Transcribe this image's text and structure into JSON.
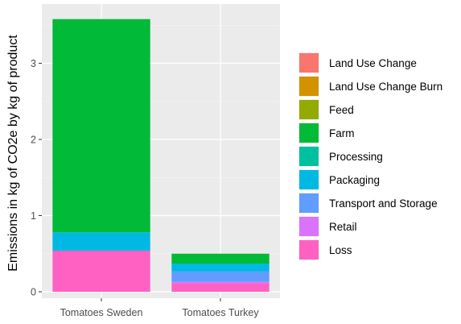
{
  "chart_data": {
    "type": "bar",
    "stacked": true,
    "categories": [
      "Tomatoes Sweden",
      "Tomatoes Turkey"
    ],
    "ylabel": "Emissions in kg of CO2e by kg of product",
    "xlabel": "",
    "ylim": [
      0,
      3.6
    ],
    "yticks": [
      0,
      1,
      2,
      3
    ],
    "grid": true,
    "legend_position": "right",
    "series": [
      {
        "name": "Land Use Change",
        "color": "#F8766D",
        "values": [
          0,
          0
        ]
      },
      {
        "name": "Land Use Change Burn",
        "color": "#D39200",
        "values": [
          0,
          0
        ]
      },
      {
        "name": "Feed",
        "color": "#93AA00",
        "values": [
          0,
          0
        ]
      },
      {
        "name": "Farm",
        "color": "#00BA38",
        "values": [
          2.8,
          0.13
        ]
      },
      {
        "name": "Processing",
        "color": "#00C19F",
        "values": [
          0,
          0
        ]
      },
      {
        "name": "Packaging",
        "color": "#00B9E3",
        "values": [
          0.24,
          0.1
        ]
      },
      {
        "name": "Transport and Storage",
        "color": "#619CFF",
        "values": [
          0,
          0.14
        ]
      },
      {
        "name": "Retail",
        "color": "#DB72FB",
        "values": [
          0,
          0.02
        ]
      },
      {
        "name": "Loss",
        "color": "#FF61C3",
        "values": [
          0.54,
          0.11
        ]
      }
    ]
  }
}
